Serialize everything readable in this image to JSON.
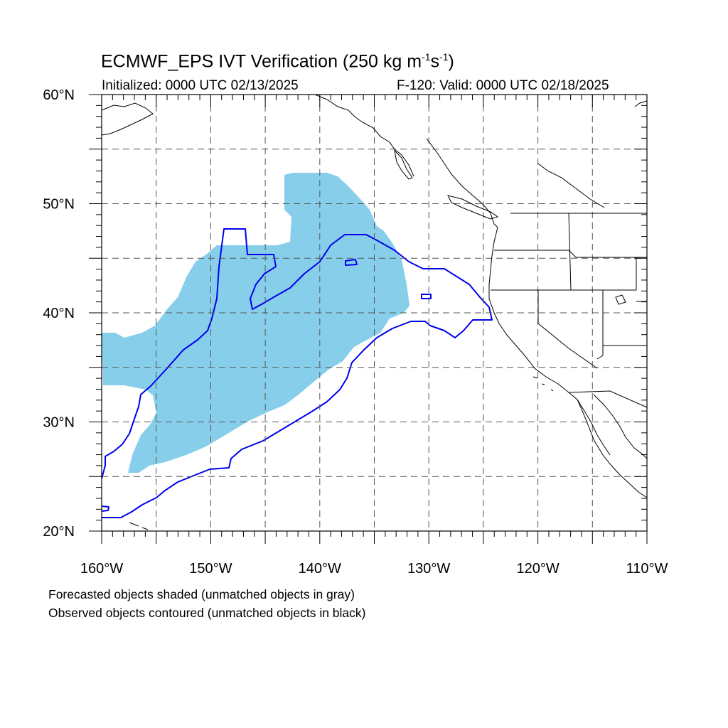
{
  "header": {
    "title_main": "ECMWF_EPS IVT Verification (250 kg m",
    "title_exp1": "-1",
    "title_mid": "s",
    "title_exp2": "-1",
    "title_end": ")",
    "initialized": "Initialized: 0000 UTC 02/13/2025",
    "valid": "F-120: Valid: 0000 UTC 02/18/2025"
  },
  "map": {
    "lat_range": [
      20,
      60
    ],
    "lon_range": [
      -160,
      -110
    ],
    "y_labels": [
      {
        "lat": 60,
        "label": "60°N"
      },
      {
        "lat": 50,
        "label": "50°N"
      },
      {
        "lat": 40,
        "label": "40°N"
      },
      {
        "lat": 30,
        "label": "30°N"
      },
      {
        "lat": 20,
        "label": "20°N"
      }
    ],
    "x_labels": [
      {
        "lon": -160,
        "label": "160°W"
      },
      {
        "lon": -150,
        "label": "150°W"
      },
      {
        "lon": -140,
        "label": "140°W"
      },
      {
        "lon": -130,
        "label": "130°W"
      },
      {
        "lon": -120,
        "label": "120°W"
      },
      {
        "lon": -110,
        "label": "110°W"
      }
    ],
    "gridlines": {
      "lats": [
        25,
        30,
        35,
        40,
        45,
        50,
        55
      ],
      "lons": [
        -155,
        -150,
        -145,
        -140,
        -135,
        -130,
        -125,
        -120,
        -115
      ]
    },
    "colors": {
      "forecast_fill": "#87ceeb",
      "observed_contour": "#0000ee",
      "coastline": "#000000",
      "gridline": "#555555"
    }
  },
  "footer": {
    "line1": "Forecasted objects shaded (unmatched objects in gray)",
    "line2": "Observed objects contoured (unmatched objects in black)"
  }
}
